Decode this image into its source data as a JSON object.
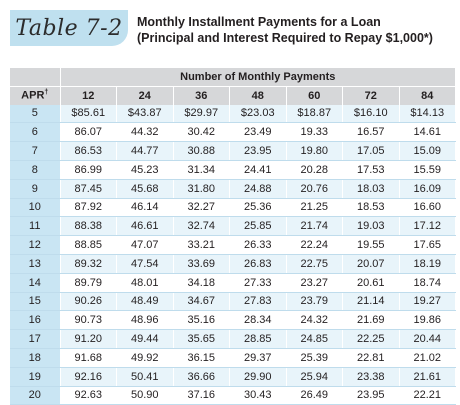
{
  "badge": "Table 7-2",
  "heading": {
    "line1": "Monthly Installment Payments for a Loan",
    "line2": "(Principal and Interest Required to Repay $1,000*)"
  },
  "table": {
    "group_header": "Number of Monthly Payments",
    "apr_header": "APR",
    "apr_mark": "†",
    "columns": [
      "12",
      "24",
      "36",
      "48",
      "60",
      "72",
      "84"
    ],
    "rows": [
      {
        "apr": "5",
        "values": [
          "$85.61",
          "$43.87",
          "$29.97",
          "$23.03",
          "$18.87",
          "$16.10",
          "$14.13"
        ]
      },
      {
        "apr": "6",
        "values": [
          "86.07",
          "44.32",
          "30.42",
          "23.49",
          "19.33",
          "16.57",
          "14.61"
        ]
      },
      {
        "apr": "7",
        "values": [
          "86.53",
          "44.77",
          "30.88",
          "23.95",
          "19.80",
          "17.05",
          "15.09"
        ]
      },
      {
        "apr": "8",
        "values": [
          "86.99",
          "45.23",
          "31.34",
          "24.41",
          "20.28",
          "17.53",
          "15.59"
        ]
      },
      {
        "apr": "9",
        "values": [
          "87.45",
          "45.68",
          "31.80",
          "24.88",
          "20.76",
          "18.03",
          "16.09"
        ]
      },
      {
        "apr": "10",
        "values": [
          "87.92",
          "46.14",
          "32.27",
          "25.36",
          "21.25",
          "18.53",
          "16.60"
        ]
      },
      {
        "apr": "11",
        "values": [
          "88.38",
          "46.61",
          "32.74",
          "25.85",
          "21.74",
          "19.03",
          "17.12"
        ]
      },
      {
        "apr": "12",
        "values": [
          "88.85",
          "47.07",
          "33.21",
          "26.33",
          "22.24",
          "19.55",
          "17.65"
        ]
      },
      {
        "apr": "13",
        "values": [
          "89.32",
          "47.54",
          "33.69",
          "26.83",
          "22.75",
          "20.07",
          "18.19"
        ]
      },
      {
        "apr": "14",
        "values": [
          "89.79",
          "48.01",
          "34.18",
          "27.33",
          "23.27",
          "20.61",
          "18.74"
        ]
      },
      {
        "apr": "15",
        "values": [
          "90.26",
          "48.49",
          "34.67",
          "27.83",
          "23.79",
          "21.14",
          "19.27"
        ]
      },
      {
        "apr": "16",
        "values": [
          "90.73",
          "48.96",
          "35.16",
          "28.34",
          "24.32",
          "21.69",
          "19.86"
        ]
      },
      {
        "apr": "17",
        "values": [
          "91.20",
          "49.44",
          "35.65",
          "28.85",
          "24.85",
          "22.25",
          "20.44"
        ]
      },
      {
        "apr": "18",
        "values": [
          "91.68",
          "49.92",
          "36.15",
          "29.37",
          "25.39",
          "22.81",
          "21.02"
        ]
      },
      {
        "apr": "19",
        "values": [
          "92.16",
          "50.41",
          "36.66",
          "29.90",
          "25.94",
          "23.38",
          "21.61"
        ]
      },
      {
        "apr": "20",
        "values": [
          "92.63",
          "50.90",
          "37.16",
          "30.43",
          "26.49",
          "23.95",
          "22.21"
        ]
      }
    ]
  },
  "colors": {
    "badge_bg": "#bfe0ef",
    "header_bg": "#d6d7d9",
    "apr_col_bg": "#c9e5f3",
    "odd_row_bg": "#e8f4fa",
    "even_row_bg": "#ffffff"
  }
}
